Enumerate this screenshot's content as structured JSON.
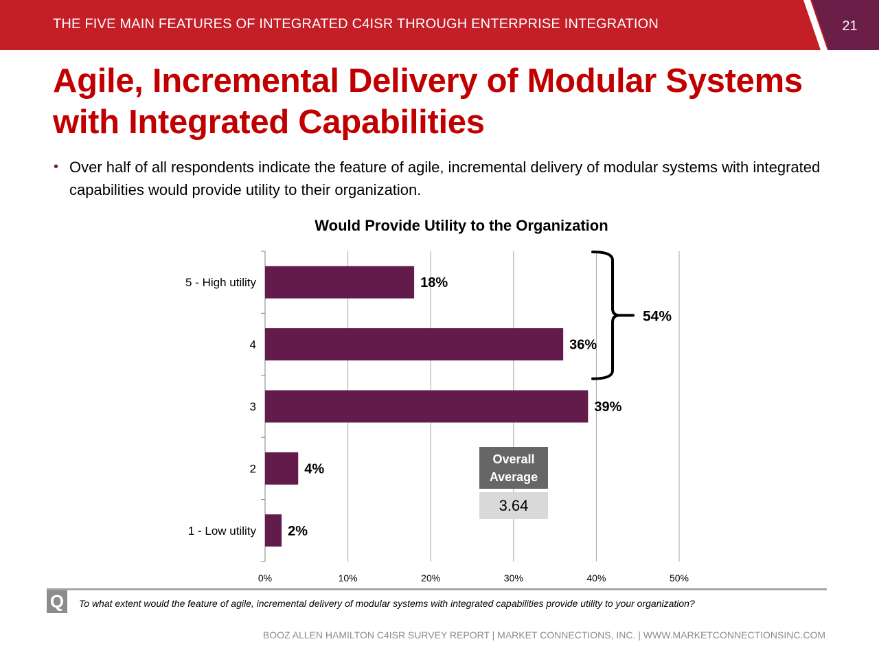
{
  "header": {
    "title": "THE FIVE MAIN FEATURES OF INTEGRATED C4ISR THROUGH ENTERPRISE INTEGRATION",
    "page_number": "21",
    "colors": {
      "band": "#c41e26",
      "tab": "#6b1e47"
    }
  },
  "slide": {
    "title_line1": "Agile, Incremental Delivery of Modular Systems",
    "title_line2": "with Integrated Capabilities",
    "bullet_symbol": "•",
    "bullet_text": "Over half of all respondents indicate the feature of agile, incremental delivery of modular systems with integrated capabilities would provide utility to their organization."
  },
  "chart_data": {
    "type": "bar",
    "orientation": "horizontal",
    "title": "Would Provide Utility to the Organization",
    "categories": [
      "5 - High utility",
      "4",
      "3",
      "2",
      "1 - Low utility"
    ],
    "values": [
      18,
      36,
      39,
      4,
      2
    ],
    "value_labels": [
      "18%",
      "36%",
      "39%",
      "4%",
      "2%"
    ],
    "xlim": [
      0,
      50
    ],
    "xticks": [
      0,
      10,
      20,
      30,
      40,
      50
    ],
    "xtick_labels": [
      "0%",
      "10%",
      "20%",
      "30%",
      "40%",
      "50%"
    ],
    "grid": true,
    "bar_color": "#621b4b",
    "bracket": {
      "categories": [
        "5 - High utility",
        "4"
      ],
      "label": "54%"
    }
  },
  "overall_average": {
    "label_line1": "Overall",
    "label_line2": "Average",
    "value": "3.64"
  },
  "question": {
    "badge": "Q",
    "text": "To what extent would the feature of agile, incremental delivery of modular systems with integrated capabilities provide utility  to your organization?"
  },
  "footer": {
    "text": "BOOZ ALLEN HAMILTON C4ISR SURVEY REPORT   |   MARKET CONNECTIONS, INC.  |  WWW.MARKETCONNECTIONSINC.COM"
  }
}
